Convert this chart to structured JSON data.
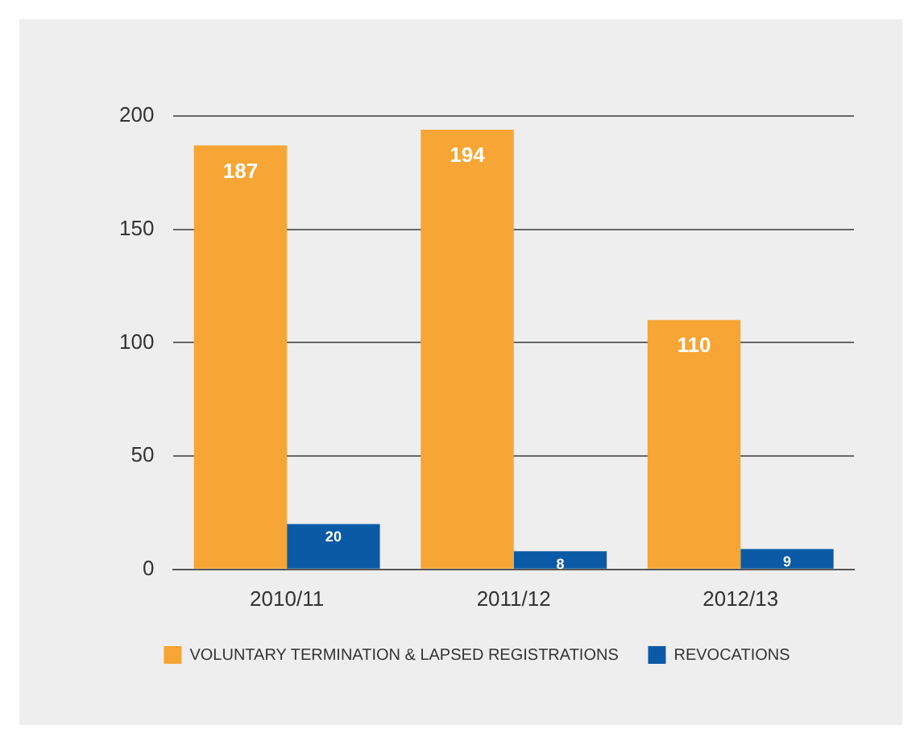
{
  "chart_data": {
    "type": "bar",
    "categories": [
      "2010/11",
      "2011/12",
      "2012/13"
    ],
    "series": [
      {
        "name": "VOLUNTARY TERMINATION & LAPSED REGISTRATIONS",
        "color": "#f7a534",
        "values": [
          187,
          194,
          110
        ]
      },
      {
        "name": "REVOCATIONS",
        "color": "#0b5aa6",
        "values": [
          20,
          8,
          9
        ]
      }
    ],
    "ylim": [
      0,
      200
    ],
    "yticks": [
      0,
      50,
      100,
      150,
      200
    ],
    "grid": "y",
    "legend": "bottom",
    "data_labels": true
  }
}
